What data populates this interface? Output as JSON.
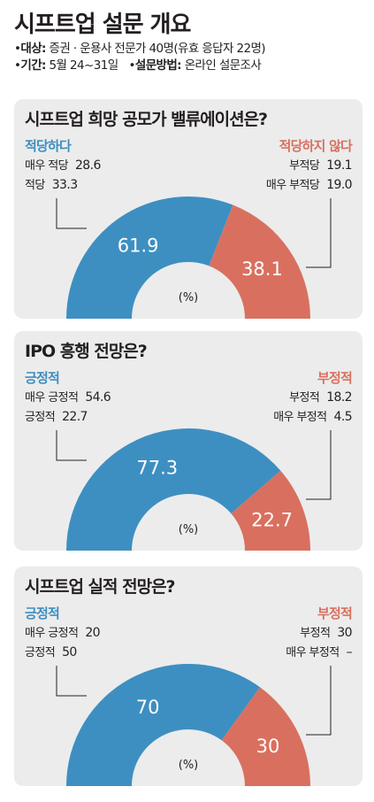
{
  "header": {
    "title": "시프트업 설문 개요",
    "target_label": "대상:",
    "target_value": "증권 · 운용사 전문가 40명(유효 응답자 22명)",
    "period_label": "기간:",
    "period_value": "5월 24~31일",
    "method_label": "설문방법:",
    "method_value": "온라인 설문조사",
    "bullet": "•"
  },
  "colors": {
    "positive": "#3d8fc2",
    "negative": "#d9705f",
    "panel": "#ececec"
  },
  "chart_data": [
    {
      "type": "pie",
      "title": "시프트업 희망 공모가 밸류에이션은?",
      "unit": "(%)",
      "slices": [
        {
          "name": "적당하다",
          "value": 61.9,
          "label": "61.9"
        },
        {
          "name": "적당하지 않다",
          "value": 38.1,
          "label": "38.1"
        }
      ],
      "positive_breakdown": [
        {
          "label": "매우 적당",
          "value": "28.6"
        },
        {
          "label": "적당",
          "value": "33.3"
        }
      ],
      "negative_breakdown": [
        {
          "label": "부적당",
          "value": "19.1"
        },
        {
          "label": "매우 부적당",
          "value": "19.0"
        }
      ]
    },
    {
      "type": "pie",
      "title": "IPO 흥행 전망은?",
      "unit": "(%)",
      "slices": [
        {
          "name": "긍정적",
          "value": 77.3,
          "label": "77.3"
        },
        {
          "name": "부정적",
          "value": 22.7,
          "label": "22.7"
        }
      ],
      "positive_breakdown": [
        {
          "label": "매우 긍정적",
          "value": "54.6"
        },
        {
          "label": "긍정적",
          "value": "22.7"
        }
      ],
      "negative_breakdown": [
        {
          "label": "부정적",
          "value": "18.2"
        },
        {
          "label": "매우 부정적",
          "value": "4.5"
        }
      ]
    },
    {
      "type": "pie",
      "title": "시프트업 실적 전망은?",
      "unit": "(%)",
      "slices": [
        {
          "name": "긍정적",
          "value": 70,
          "label": "70"
        },
        {
          "name": "부정적",
          "value": 30,
          "label": "30"
        }
      ],
      "positive_breakdown": [
        {
          "label": "매우 긍정적",
          "value": "20"
        },
        {
          "label": "긍정적",
          "value": "50"
        }
      ],
      "negative_breakdown": [
        {
          "label": "부정적",
          "value": "30"
        },
        {
          "label": "매우 부정적",
          "value": "–"
        }
      ]
    }
  ]
}
